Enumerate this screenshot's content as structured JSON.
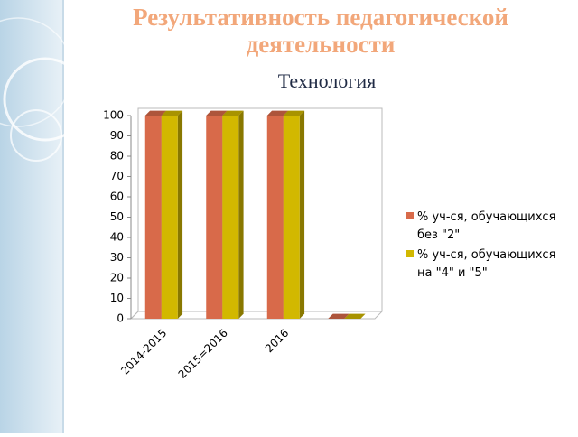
{
  "chart_data": {
    "type": "bar",
    "title": [
      "Результативность педагогической",
      "деятельности"
    ],
    "subtitle": "Технология",
    "categories": [
      "2014-2015",
      "2015=2016",
      "2016",
      null
    ],
    "series": [
      {
        "name": "% уч-ся, обучающихся без \"2\"",
        "color": "#d86a4a",
        "values": [
          100,
          100,
          100,
          0
        ]
      },
      {
        "name": "% уч-ся, обучающихся на \"4\" и \"5\"",
        "color": "#d2b800",
        "values": [
          100,
          100,
          100,
          0
        ]
      }
    ],
    "ylim": [
      0,
      100
    ],
    "yticks": [
      0,
      10,
      20,
      30,
      40,
      50,
      60,
      70,
      80,
      90,
      100
    ],
    "grid": false,
    "legend": "right"
  }
}
